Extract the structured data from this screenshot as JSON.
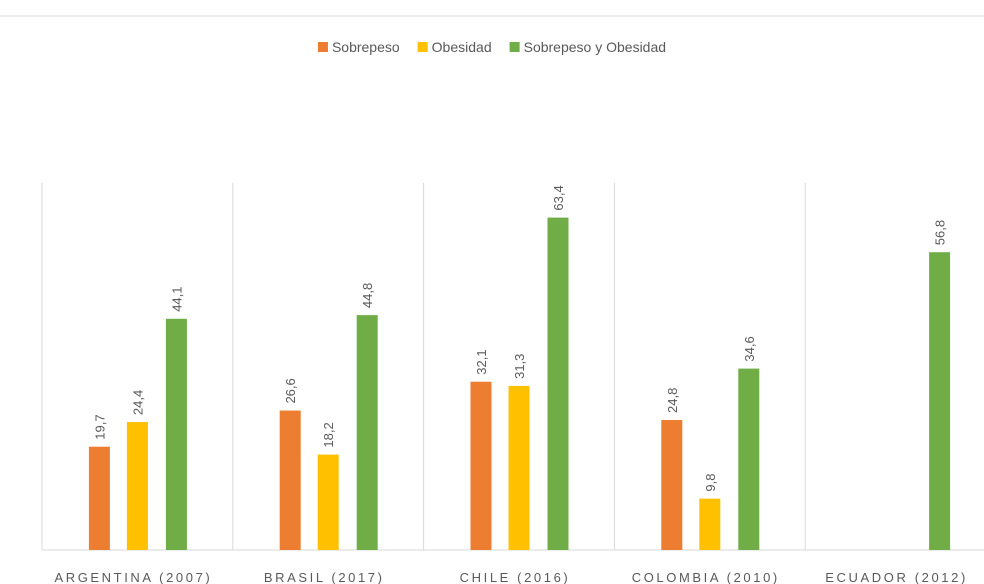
{
  "chart_data": {
    "type": "bar",
    "categories": [
      "ARGENTINA (2007)",
      "BRASIL (2017)",
      "CHILE (2016)",
      "COLOMBIA (2010)",
      "ECUADOR (2012)"
    ],
    "series": [
      {
        "name": "Sobrepeso",
        "color": "#ed7d31",
        "values": [
          19.7,
          26.6,
          32.1,
          24.8,
          null
        ],
        "value_labels": [
          "19,7",
          "26,6",
          "32,1",
          "24,8",
          null
        ]
      },
      {
        "name": "Obesidad",
        "color": "#ffc000",
        "values": [
          24.4,
          18.2,
          31.3,
          9.8,
          null
        ],
        "value_labels": [
          "24,4",
          "18,2",
          "31,3",
          "9,8",
          null
        ]
      },
      {
        "name": "Sobrepeso y Obesidad",
        "color": "#70ad47",
        "values": [
          44.1,
          44.8,
          63.4,
          34.6,
          56.8
        ],
        "value_labels": [
          "44,1",
          "44,8",
          "63,4",
          "34,6",
          "56,8"
        ]
      }
    ],
    "ylim": [
      0,
      70
    ],
    "legend": "top"
  }
}
